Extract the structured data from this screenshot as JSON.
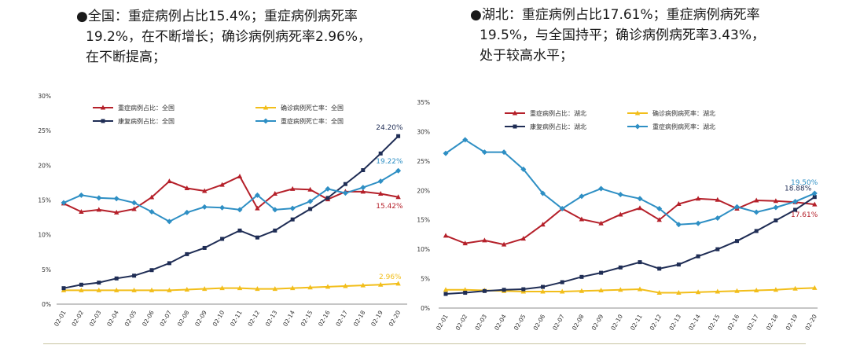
{
  "notes": {
    "left": {
      "lines": [
        "●全国：重症病例占比15.4%；重症病例病死率",
        "19.2%，在不断增长；确诊病例病死率2.96%，",
        "在不断提高；"
      ]
    },
    "right": {
      "lines": [
        "●湖北：重症病例占比17.61%；重症病例病死率",
        "19.5%，与全国持平；确诊病例病死率3.43%，",
        "处于较高水平；"
      ]
    }
  },
  "chart_data": [
    {
      "type": "line",
      "title": "",
      "x": [
        "02-01",
        "02-02",
        "02-03",
        "02-04",
        "02-05",
        "02-06",
        "02-07",
        "02-08",
        "02-09",
        "02-10",
        "02-11",
        "02-12",
        "02-13",
        "02-14",
        "02-15",
        "02-16",
        "02-17",
        "02-18",
        "02-19",
        "02-20"
      ],
      "ylim": [
        0,
        30
      ],
      "yticks": [
        "0%",
        "5%",
        "10%",
        "15%",
        "20%",
        "25%",
        "30%"
      ],
      "grid": false,
      "legend": "top-left",
      "series": [
        {
          "name": "重症病例占比：全国",
          "color": "#b5202a",
          "marker": "triangle",
          "values": [
            14.5,
            13.3,
            13.6,
            13.2,
            13.7,
            15.4,
            17.7,
            16.7,
            16.3,
            17.2,
            18.4,
            13.8,
            15.9,
            16.6,
            16.5,
            15.1,
            16.2,
            16.2,
            15.9,
            15.42
          ]
        },
        {
          "name": "确诊病例死亡率：全国",
          "color": "#f2be1a",
          "marker": "triangle",
          "values": [
            2.0,
            2.0,
            2.0,
            2.0,
            2.0,
            2.0,
            2.0,
            2.1,
            2.2,
            2.3,
            2.3,
            2.2,
            2.2,
            2.3,
            2.4,
            2.5,
            2.6,
            2.7,
            2.8,
            2.96
          ]
        },
        {
          "name": "康复病例占比：全国",
          "color": "#1f2d55",
          "marker": "square",
          "values": [
            2.3,
            2.8,
            3.1,
            3.7,
            4.1,
            4.9,
            5.9,
            7.2,
            8.1,
            9.4,
            10.6,
            9.6,
            10.6,
            12.2,
            13.7,
            15.3,
            17.3,
            19.3,
            21.7,
            24.2
          ]
        },
        {
          "name": "重症病例死亡率：全国",
          "color": "#2e8fc4",
          "marker": "diamond",
          "values": [
            14.6,
            15.7,
            15.3,
            15.2,
            14.6,
            13.3,
            11.9,
            13.2,
            14.0,
            13.9,
            13.6,
            15.7,
            13.6,
            13.8,
            14.8,
            16.6,
            16.0,
            16.8,
            17.7,
            19.22
          ]
        }
      ],
      "data_labels": [
        {
          "series": "康复病例占比：全国",
          "text": "24.20%"
        },
        {
          "series": "重症病例死亡率：全国",
          "text": "19.22%"
        },
        {
          "series": "重症病例占比：全国",
          "text": "15.42%"
        },
        {
          "series": "确诊病例死亡率：全国",
          "text": "2.96%"
        }
      ]
    },
    {
      "type": "line",
      "title": "",
      "x": [
        "02-01",
        "02-02",
        "02-03",
        "02-04",
        "02-05",
        "02-06",
        "02-07",
        "02-08",
        "02-09",
        "02-10",
        "02-11",
        "02-12",
        "02-13",
        "02-14",
        "02-15",
        "02-16",
        "02-17",
        "02-18",
        "02-19",
        "02-20"
      ],
      "ylim": [
        0,
        35
      ],
      "yticks": [
        "0%",
        "5%",
        "10%",
        "15%",
        "20%",
        "25%",
        "30%",
        "35%"
      ],
      "grid": false,
      "legend": "top",
      "series": [
        {
          "name": "重症病例占比：湖北",
          "color": "#b5202a",
          "marker": "triangle",
          "values": [
            12.3,
            11.0,
            11.5,
            10.8,
            11.8,
            14.2,
            16.9,
            15.1,
            14.4,
            15.9,
            17.0,
            15.0,
            17.7,
            18.6,
            18.4,
            16.9,
            18.3,
            18.2,
            18.0,
            17.61
          ]
        },
        {
          "name": "确诊病例病死率：湖北",
          "color": "#f2be1a",
          "marker": "triangle",
          "values": [
            3.1,
            3.1,
            3.0,
            2.9,
            2.8,
            2.8,
            2.8,
            2.9,
            3.0,
            3.1,
            3.2,
            2.6,
            2.6,
            2.7,
            2.8,
            2.9,
            3.0,
            3.1,
            3.3,
            3.43
          ]
        },
        {
          "name": "康复病例占比：湖北",
          "color": "#1f2d55",
          "marker": "square",
          "values": [
            2.4,
            2.6,
            2.9,
            3.1,
            3.2,
            3.6,
            4.4,
            5.3,
            6.0,
            6.9,
            7.8,
            6.7,
            7.4,
            8.8,
            10.0,
            11.4,
            13.1,
            14.9,
            16.7,
            18.88
          ]
        },
        {
          "name": "重症病例病死率：湖北",
          "color": "#2e8fc4",
          "marker": "diamond",
          "values": [
            26.3,
            28.6,
            26.5,
            26.5,
            23.6,
            19.5,
            16.9,
            19.0,
            20.3,
            19.3,
            18.6,
            16.9,
            14.2,
            14.4,
            15.3,
            17.2,
            16.3,
            17.1,
            18.1,
            19.5
          ]
        }
      ],
      "data_labels": [
        {
          "series": "重症病例病死率：湖北",
          "text": "19.50%"
        },
        {
          "series": "康复病例占比：湖北",
          "text": "18.88%"
        },
        {
          "series": "重症病例占比：湖北",
          "text": "17.61%"
        }
      ]
    }
  ]
}
